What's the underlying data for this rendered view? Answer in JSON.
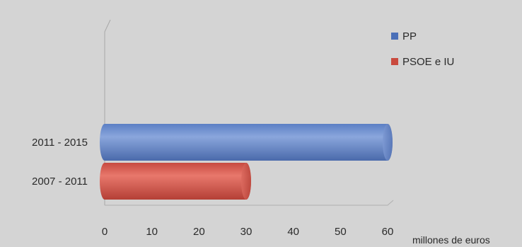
{
  "chart_data": {
    "type": "bar",
    "orientation": "horizontal",
    "title": "",
    "xlabel": "millones de euros",
    "ylabel": "",
    "categories": [
      "2011 - 2015",
      "2007 - 2011"
    ],
    "values": [
      60,
      30
    ],
    "series_by_category": [
      "PP",
      "PSOE e IU"
    ],
    "colors": [
      "#6f8fcc",
      "#d9594e"
    ],
    "xlim": [
      0,
      60
    ],
    "xticks": [
      "0",
      "10",
      "20",
      "30",
      "40",
      "50",
      "60"
    ],
    "legend": {
      "placement": "top-right",
      "entries": [
        {
          "label": "PP",
          "color": "#4a6fb8"
        },
        {
          "label": "PSOE e IU",
          "color": "#c94a3e"
        }
      ]
    },
    "grid": false
  }
}
